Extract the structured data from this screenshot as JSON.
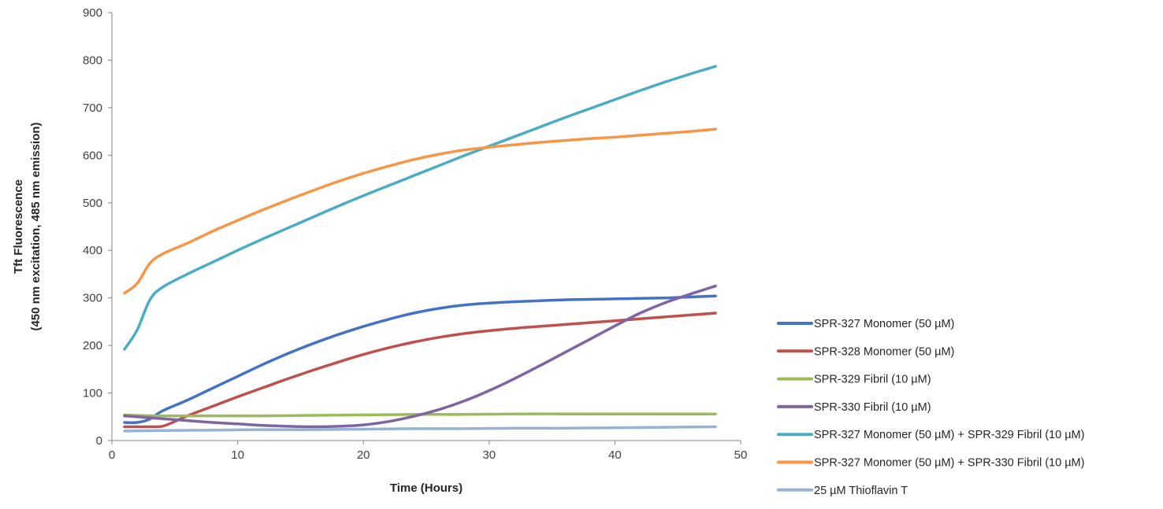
{
  "chart_data": {
    "type": "line",
    "title": "",
    "xlabel": "Time (Hours)",
    "ylabel_line1": "Tft Fluorescence",
    "ylabel_line2": "(450 nm excitation, 485 nm emission)",
    "xlim": [
      0,
      50
    ],
    "ylim": [
      0,
      900
    ],
    "xticks": [
      0,
      10,
      20,
      30,
      40,
      50
    ],
    "yticks": [
      0,
      100,
      200,
      300,
      400,
      500,
      600,
      700,
      800,
      900
    ],
    "grid": false,
    "legend_position": "right",
    "series": [
      {
        "name": "SPR-327 Monomer (50 µM)",
        "color": "#4472C4",
        "points": [
          [
            1,
            38
          ],
          [
            2,
            38
          ],
          [
            3,
            45
          ],
          [
            4,
            62
          ],
          [
            6,
            85
          ],
          [
            8,
            110
          ],
          [
            10,
            135
          ],
          [
            12,
            160
          ],
          [
            14,
            183
          ],
          [
            16,
            204
          ],
          [
            18,
            223
          ],
          [
            20,
            240
          ],
          [
            22,
            255
          ],
          [
            24,
            268
          ],
          [
            26,
            278
          ],
          [
            28,
            285
          ],
          [
            30,
            289
          ],
          [
            32,
            292
          ],
          [
            34,
            294
          ],
          [
            36,
            296
          ],
          [
            38,
            297
          ],
          [
            40,
            298
          ],
          [
            42,
            299
          ],
          [
            44,
            300
          ],
          [
            46,
            302
          ],
          [
            48,
            304
          ]
        ]
      },
      {
        "name": "SPR-328 Monomer (50 µM)",
        "color": "#C0504D",
        "points": [
          [
            1,
            29
          ],
          [
            2,
            29
          ],
          [
            3,
            29
          ],
          [
            4,
            30
          ],
          [
            5,
            40
          ],
          [
            6,
            52
          ],
          [
            8,
            72
          ],
          [
            10,
            92
          ],
          [
            12,
            111
          ],
          [
            14,
            130
          ],
          [
            16,
            148
          ],
          [
            18,
            165
          ],
          [
            20,
            181
          ],
          [
            22,
            195
          ],
          [
            24,
            207
          ],
          [
            26,
            217
          ],
          [
            28,
            225
          ],
          [
            30,
            231
          ],
          [
            32,
            236
          ],
          [
            34,
            240
          ],
          [
            36,
            244
          ],
          [
            38,
            248
          ],
          [
            40,
            252
          ],
          [
            42,
            256
          ],
          [
            44,
            260
          ],
          [
            46,
            264
          ],
          [
            48,
            268
          ]
        ]
      },
      {
        "name": "SPR-329 Fibril (10 µM)",
        "color": "#9BBB59",
        "points": [
          [
            1,
            54
          ],
          [
            2,
            53
          ],
          [
            4,
            52
          ],
          [
            8,
            52
          ],
          [
            12,
            52
          ],
          [
            16,
            53
          ],
          [
            20,
            54
          ],
          [
            24,
            55
          ],
          [
            28,
            55
          ],
          [
            32,
            56
          ],
          [
            36,
            56
          ],
          [
            40,
            56
          ],
          [
            44,
            56
          ],
          [
            48,
            56
          ]
        ]
      },
      {
        "name": "SPR-330 Fibril (10 µM)",
        "color": "#8064A2",
        "points": [
          [
            1,
            52
          ],
          [
            2,
            50
          ],
          [
            4,
            46
          ],
          [
            6,
            42
          ],
          [
            8,
            38
          ],
          [
            10,
            35
          ],
          [
            12,
            32
          ],
          [
            14,
            30
          ],
          [
            16,
            29
          ],
          [
            18,
            30
          ],
          [
            20,
            33
          ],
          [
            22,
            40
          ],
          [
            24,
            51
          ],
          [
            26,
            65
          ],
          [
            28,
            83
          ],
          [
            30,
            105
          ],
          [
            32,
            130
          ],
          [
            34,
            157
          ],
          [
            36,
            185
          ],
          [
            38,
            213
          ],
          [
            40,
            241
          ],
          [
            42,
            268
          ],
          [
            44,
            290
          ],
          [
            46,
            308
          ],
          [
            48,
            325
          ]
        ]
      },
      {
        "name": "SPR-327 Monomer (50 µM) + SPR-329 Fibril (10 µM)",
        "color": "#4BACC6",
        "points": [
          [
            1,
            192
          ],
          [
            2,
            232
          ],
          [
            3,
            295
          ],
          [
            4,
            322
          ],
          [
            6,
            350
          ],
          [
            8,
            375
          ],
          [
            10,
            400
          ],
          [
            12,
            424
          ],
          [
            14,
            447
          ],
          [
            16,
            470
          ],
          [
            18,
            493
          ],
          [
            20,
            515
          ],
          [
            22,
            536
          ],
          [
            24,
            557
          ],
          [
            26,
            578
          ],
          [
            28,
            599
          ],
          [
            30,
            619
          ],
          [
            32,
            639
          ],
          [
            34,
            659
          ],
          [
            36,
            679
          ],
          [
            38,
            698
          ],
          [
            40,
            717
          ],
          [
            42,
            736
          ],
          [
            44,
            754
          ],
          [
            46,
            771
          ],
          [
            48,
            787
          ]
        ]
      },
      {
        "name": "SPR-327 Monomer (50 µM) + SPR-330 Fibril (10 µM)",
        "color": "#F79646",
        "points": [
          [
            1,
            310
          ],
          [
            2,
            330
          ],
          [
            3,
            372
          ],
          [
            4,
            392
          ],
          [
            6,
            415
          ],
          [
            8,
            440
          ],
          [
            10,
            463
          ],
          [
            12,
            485
          ],
          [
            14,
            506
          ],
          [
            16,
            526
          ],
          [
            18,
            545
          ],
          [
            20,
            562
          ],
          [
            22,
            577
          ],
          [
            24,
            591
          ],
          [
            26,
            602
          ],
          [
            28,
            611
          ],
          [
            30,
            617
          ],
          [
            32,
            622
          ],
          [
            34,
            627
          ],
          [
            36,
            631
          ],
          [
            38,
            635
          ],
          [
            40,
            638
          ],
          [
            42,
            642
          ],
          [
            44,
            646
          ],
          [
            46,
            650
          ],
          [
            48,
            655
          ]
        ]
      },
      {
        "name": "25 µM Thioflavin T",
        "color": "#95B3D7",
        "points": [
          [
            1,
            20
          ],
          [
            4,
            21
          ],
          [
            8,
            22
          ],
          [
            12,
            23
          ],
          [
            16,
            23
          ],
          [
            20,
            24
          ],
          [
            24,
            25
          ],
          [
            28,
            25
          ],
          [
            32,
            26
          ],
          [
            36,
            26
          ],
          [
            40,
            27
          ],
          [
            44,
            28
          ],
          [
            48,
            29
          ]
        ]
      }
    ]
  }
}
